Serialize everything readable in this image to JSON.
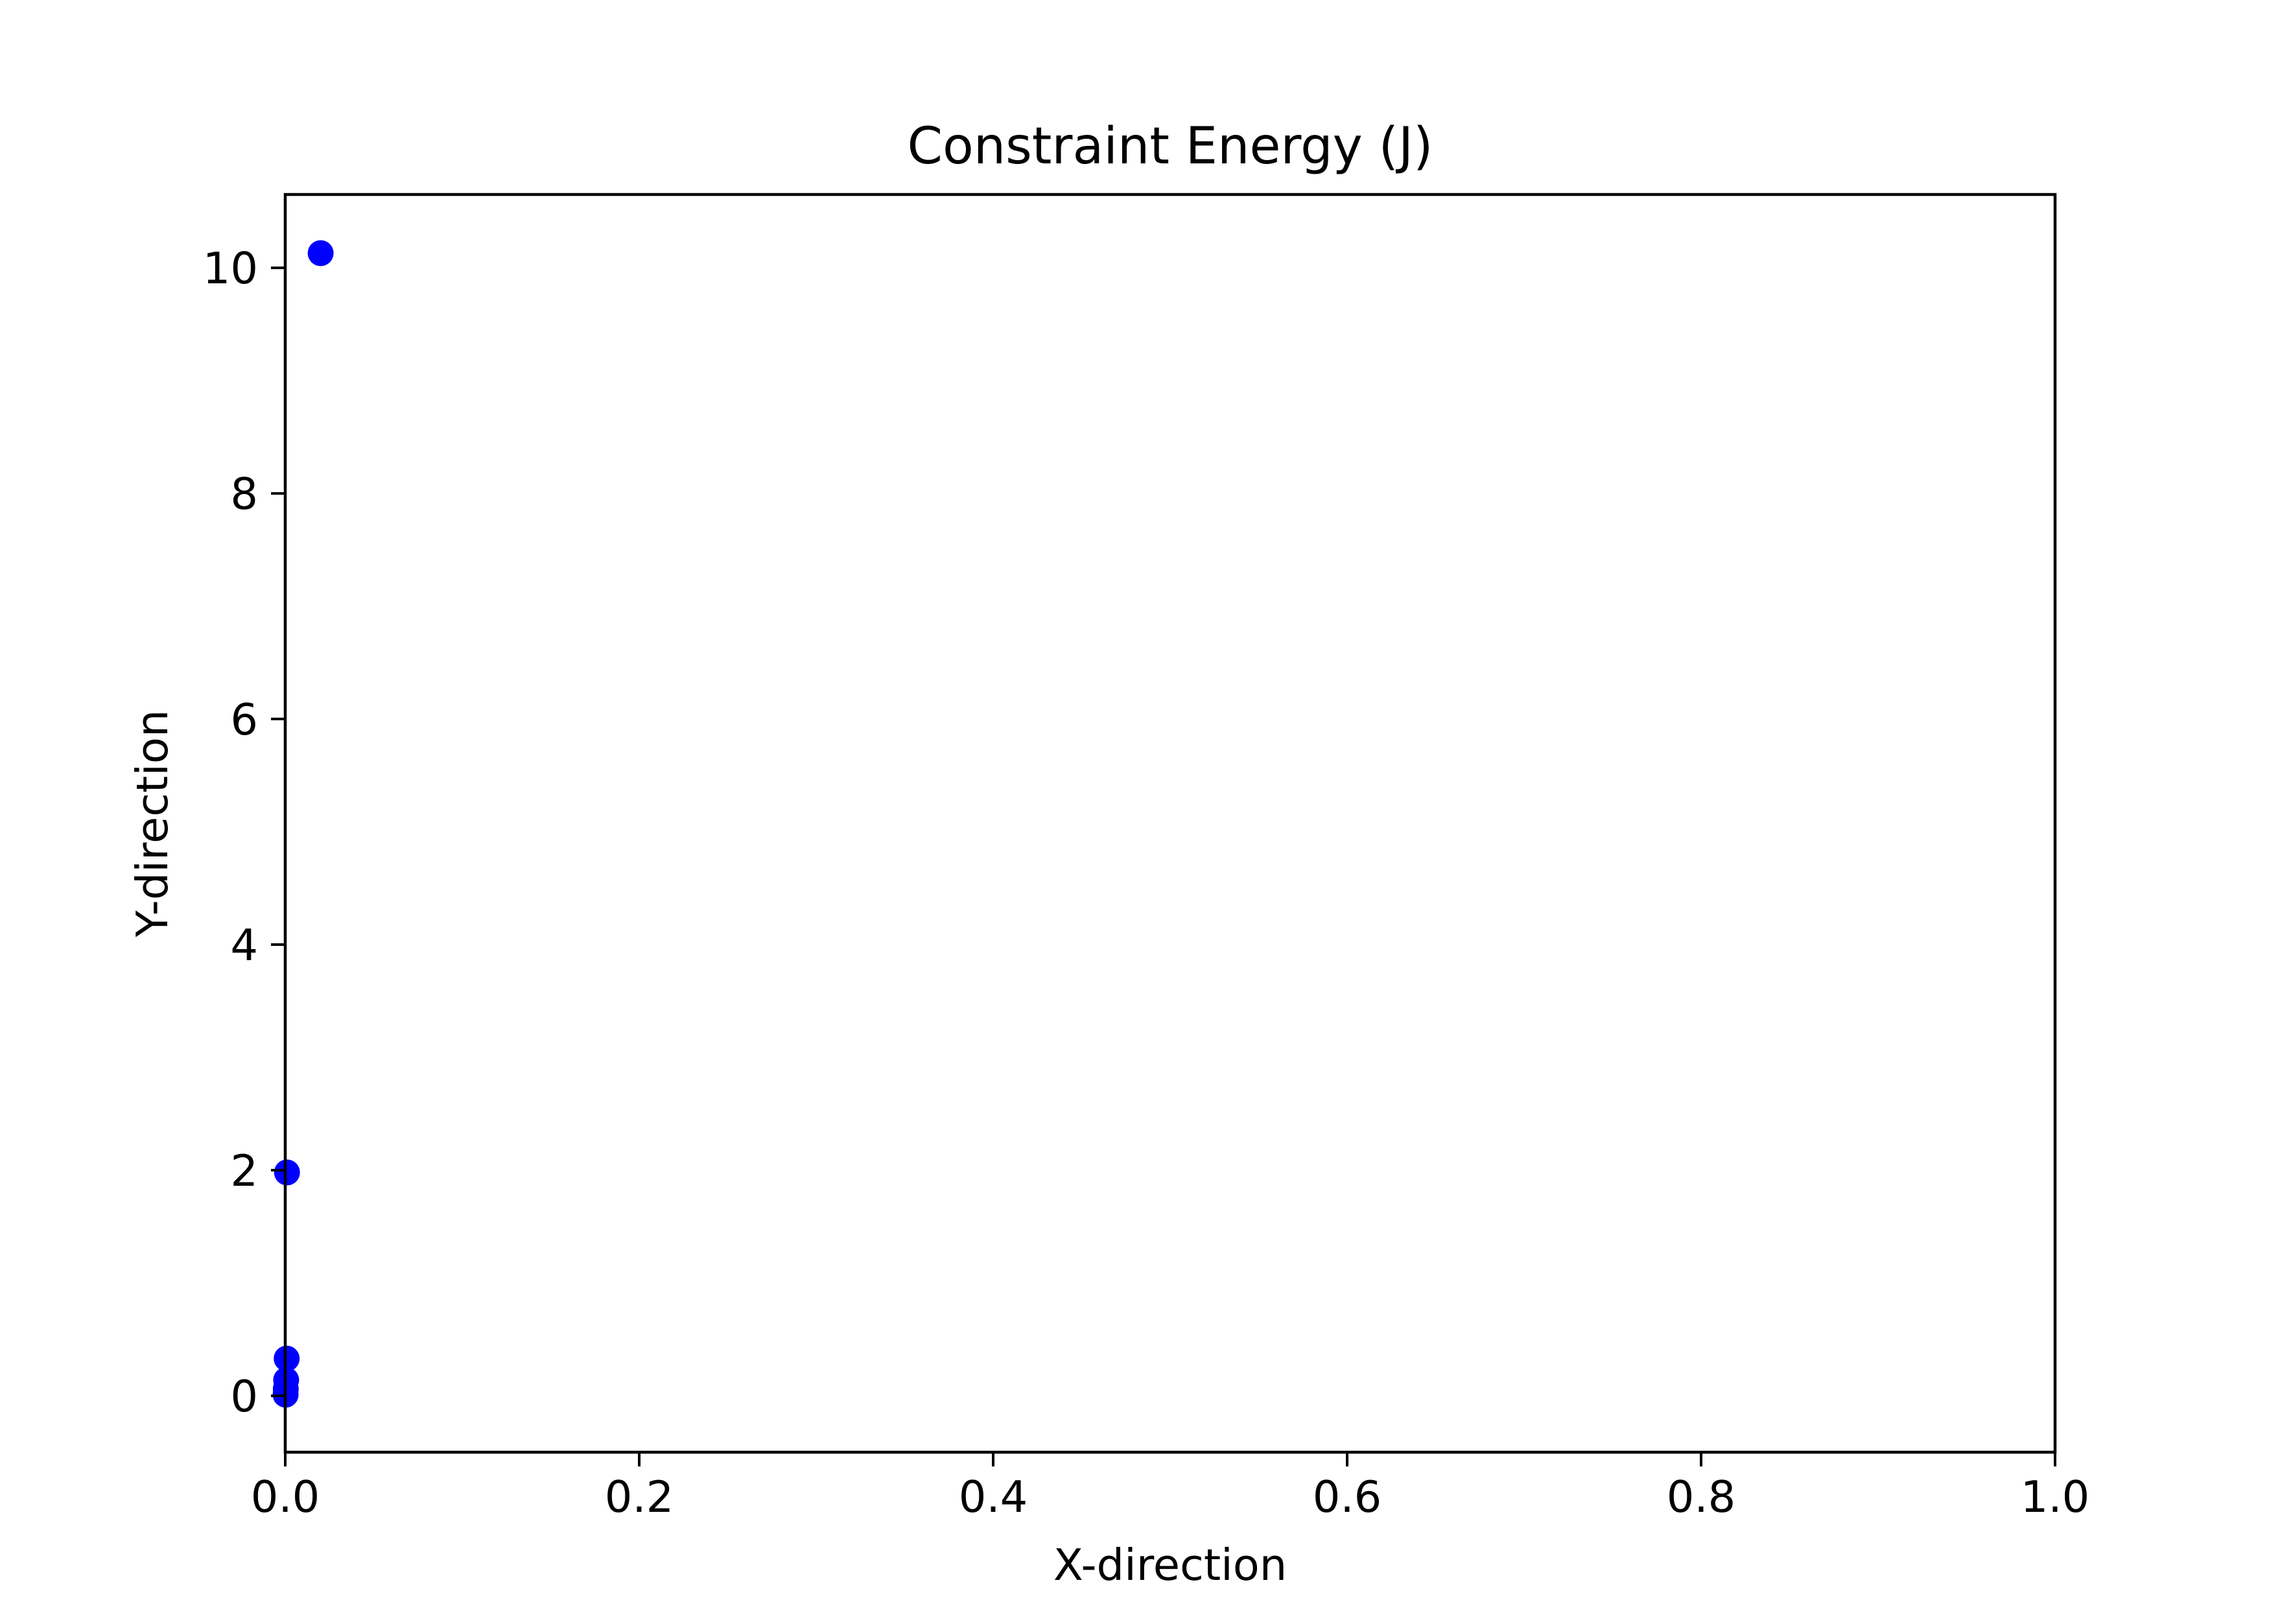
{
  "chart_data": {
    "type": "scatter",
    "title": "Constraint Energy (J)",
    "xlabel": "X-direction",
    "ylabel": "Y-direction",
    "xlim": [
      0,
      1
    ],
    "ylim": [
      -0.5,
      10.65
    ],
    "x_ticks": [
      0,
      0.2,
      0.4,
      0.6,
      0.8,
      1
    ],
    "x_tick_labels": [
      "0.0",
      "0.2",
      "0.4",
      "0.6",
      "0.8",
      "1.0"
    ],
    "y_ticks": [
      0,
      2,
      4,
      6,
      8,
      10
    ],
    "y_tick_labels": [
      "0",
      "2",
      "4",
      "6",
      "8",
      "10"
    ],
    "grid": false,
    "legend": "none",
    "marker_color": "#0000ff",
    "series": [
      {
        "points": [
          {
            "x": 0.02,
            "y": 10.13
          },
          {
            "x": 0.001,
            "y": 1.98
          },
          {
            "x": 0.0008,
            "y": 0.33
          },
          {
            "x": 0.0005,
            "y": 0.14
          },
          {
            "x": 0.0003,
            "y": 0.06
          },
          {
            "x": 0.0002,
            "y": 0.01
          }
        ]
      }
    ]
  }
}
